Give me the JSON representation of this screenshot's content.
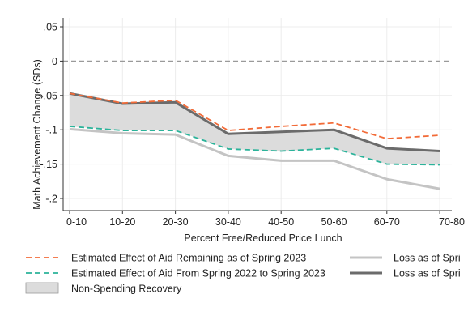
{
  "chart_data": {
    "type": "line",
    "title": "",
    "xlabel": "Percent Free/Reduced Price Lunch",
    "ylabel": "Math Achievement Change (SDs)",
    "categories": [
      "0-10",
      "10-20",
      "20-30",
      "30-40",
      "40-50",
      "50-60",
      "60-70",
      "70-80"
    ],
    "ylim": [
      -0.22,
      0.06
    ],
    "yticks": [
      0.05,
      0,
      -0.05,
      -0.1,
      -0.15,
      -0.2
    ],
    "ytick_labels": [
      ".05",
      "0",
      "-.05",
      "-.1",
      "-.15",
      "-.2"
    ],
    "grid": true,
    "zero_reference_line": true,
    "legend_placement": "bottom",
    "series": [
      {
        "name": "Estimated Effect of Aid Remaining as of Spring 2023",
        "style": "dashed",
        "color": "#f26b38",
        "values": [
          -0.047,
          -0.061,
          -0.057,
          -0.101,
          -0.095,
          -0.09,
          -0.113,
          -0.108
        ]
      },
      {
        "name": "Estimated Effect of Aid From Spring 2022 to Spring 2023",
        "style": "dashed",
        "color": "#2bb39a",
        "values": [
          -0.095,
          -0.101,
          -0.101,
          -0.128,
          -0.131,
          -0.127,
          -0.15,
          -0.151
        ]
      },
      {
        "name": "Loss as of Spri",
        "style": "solid",
        "color": "#c4c4c4",
        "values": [
          -0.099,
          -0.105,
          -0.107,
          -0.138,
          -0.145,
          -0.145,
          -0.172,
          -0.186
        ]
      },
      {
        "name": "Loss as of Spri",
        "style": "solid",
        "color": "#6b6b6b",
        "values": [
          -0.047,
          -0.062,
          -0.06,
          -0.106,
          -0.103,
          -0.1,
          -0.127,
          -0.131
        ]
      }
    ],
    "band": {
      "name": "Non-Spending Recovery",
      "color": "#dcdcdc",
      "upper": [
        -0.047,
        -0.062,
        -0.06,
        -0.106,
        -0.103,
        -0.1,
        -0.127,
        -0.131
      ],
      "lower": [
        -0.095,
        -0.101,
        -0.101,
        -0.128,
        -0.131,
        -0.127,
        -0.15,
        -0.151
      ]
    }
  }
}
